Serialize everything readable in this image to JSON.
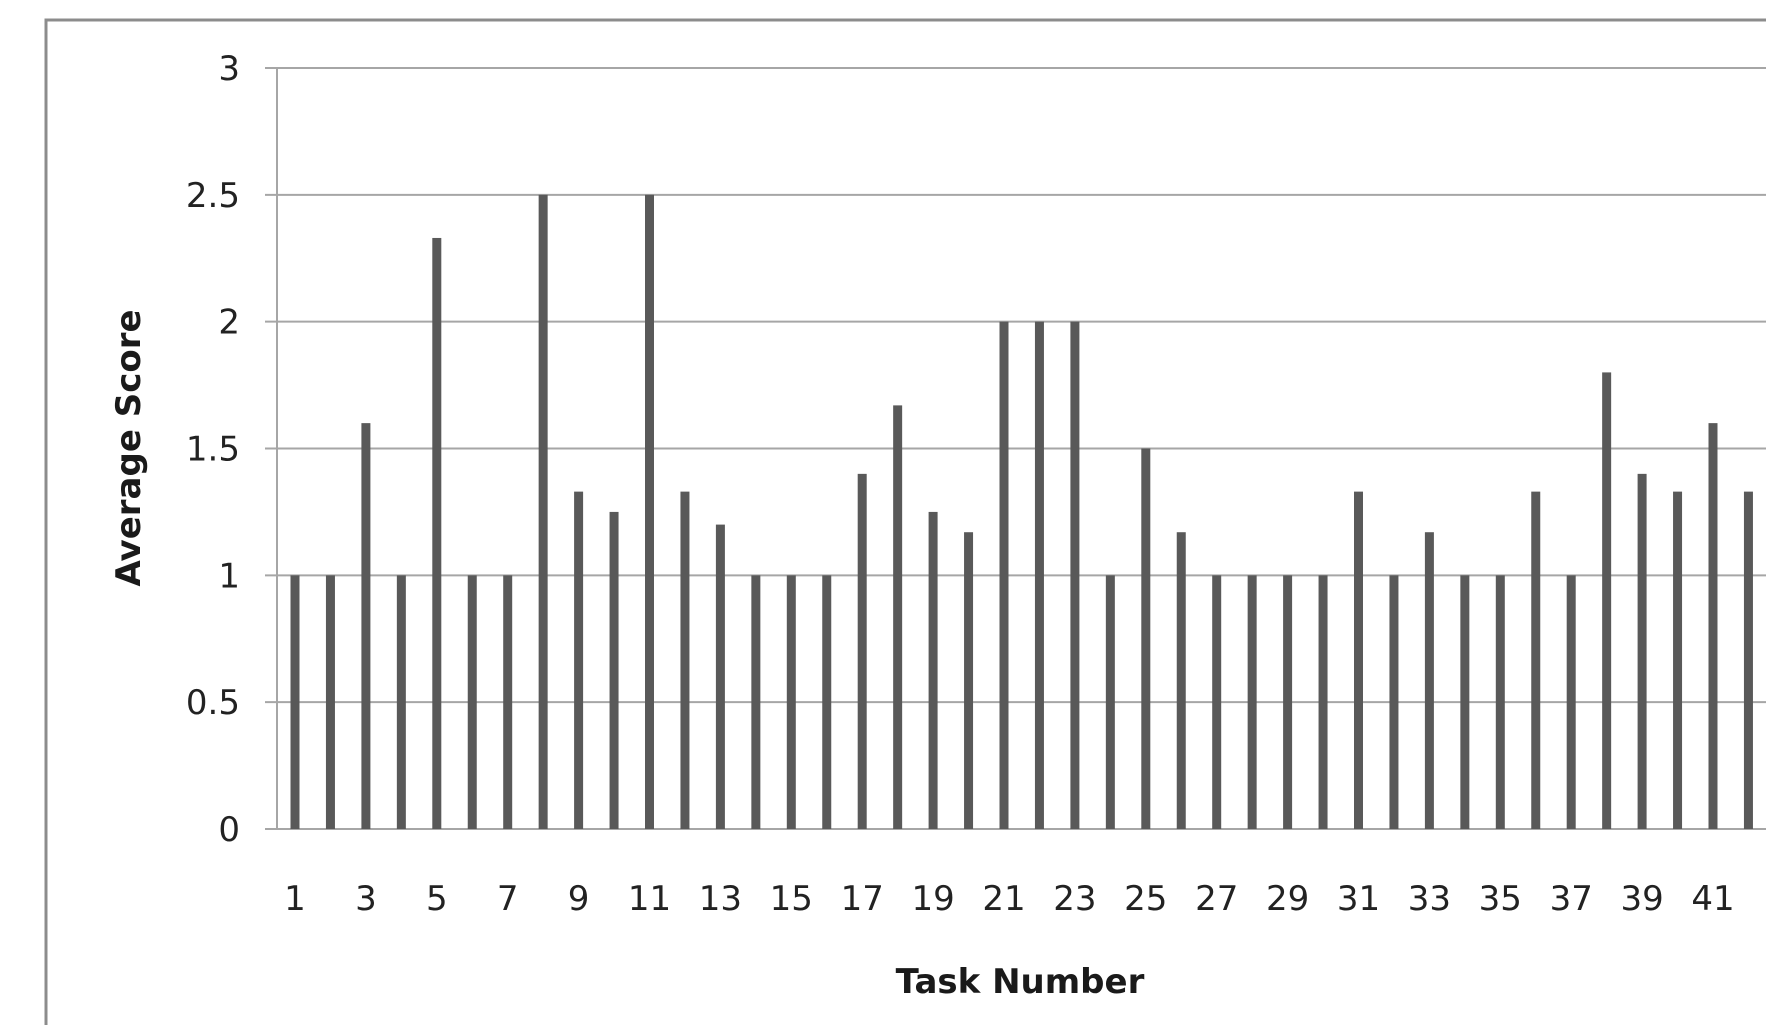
{
  "chart_data": {
    "type": "bar",
    "xlabel": "Task Number",
    "ylabel": "Average Score",
    "ylim": [
      0,
      3
    ],
    "yticks": [
      "0",
      "0.5",
      "1",
      "1.5",
      "2",
      "2.5",
      "3"
    ],
    "grid": true,
    "legend": "none",
    "bar_color": "#595959",
    "grid_color": "#a6a6a6",
    "frame_color": "#8c8c8c",
    "categories": [
      1,
      2,
      3,
      4,
      5,
      6,
      7,
      8,
      9,
      10,
      11,
      12,
      13,
      14,
      15,
      16,
      17,
      18,
      19,
      20,
      21,
      22,
      23,
      24,
      25,
      26,
      27,
      28,
      29,
      30,
      31,
      32,
      33,
      34,
      35,
      36,
      37,
      38,
      39,
      40,
      41,
      42
    ],
    "x_tick_labels": [
      "1",
      "3",
      "5",
      "7",
      "9",
      "11",
      "13",
      "15",
      "17",
      "19",
      "21",
      "23",
      "25",
      "27",
      "29",
      "31",
      "33",
      "35",
      "37",
      "39",
      "41"
    ],
    "values": [
      1,
      1,
      1.6,
      1,
      2.33,
      1,
      1,
      2.5,
      1.33,
      1.25,
      2.5,
      1.33,
      1.2,
      1,
      1,
      1,
      1.4,
      1.67,
      1.25,
      1.17,
      2,
      2,
      2,
      1,
      1.5,
      1.17,
      1,
      1,
      1,
      1,
      1.33,
      1,
      1.17,
      1,
      1,
      1.33,
      1,
      1.8,
      1.4,
      1.33,
      1.6,
      1.33
    ]
  }
}
